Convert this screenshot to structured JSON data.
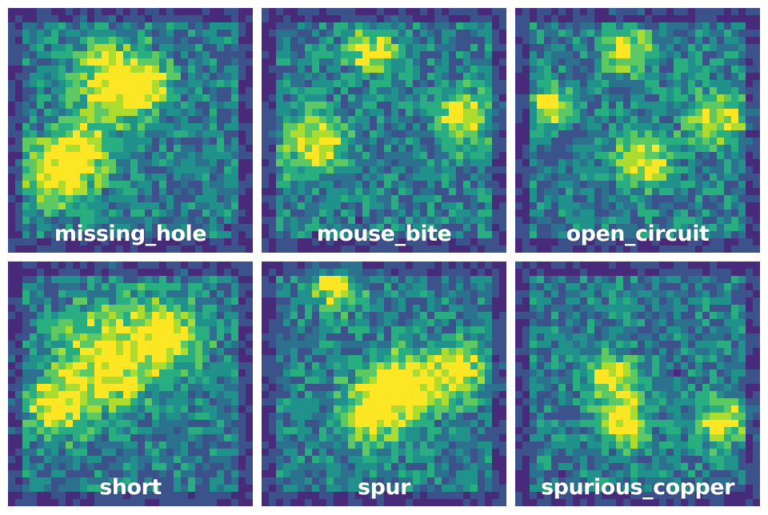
{
  "colormap": [
    "#440154",
    "#472a7a",
    "#3b528b",
    "#2c728e",
    "#21918c",
    "#28ae80",
    "#5ec962",
    "#addc30",
    "#fde725"
  ],
  "panels": [
    {
      "label": "missing_hole"
    },
    {
      "label": "mouse_bite"
    },
    {
      "label": "open_circuit"
    },
    {
      "label": "short"
    },
    {
      "label": "spur"
    },
    {
      "label": "spurious_copper"
    }
  ]
}
